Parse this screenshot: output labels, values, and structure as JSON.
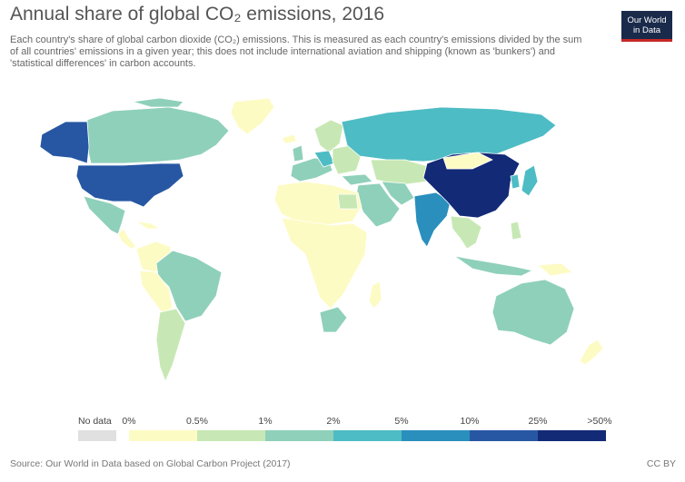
{
  "header": {
    "title": "Annual share of global CO₂ emissions, 2016",
    "subtitle": "Each country's share of global carbon dioxide (CO₂) emissions. This is measured as each country's emissions divided by the sum of all countries' emissions in a given year; this does not include international aviation and shipping (known as 'bunkers') and 'statistical differences' in carbon accounts.",
    "logo_line1": "Our World",
    "logo_line2": "in Data"
  },
  "legend": {
    "no_data_label": "No data",
    "no_data_color": "#e0e0e0",
    "bins": [
      {
        "label": "0%",
        "color": "#fdfbc4"
      },
      {
        "label": "0.5%",
        "color": "#c7e8b4"
      },
      {
        "label": "1%",
        "color": "#8fd0ba"
      },
      {
        "label": "2%",
        "color": "#4ebcc4"
      },
      {
        "label": "5%",
        "color": "#2a8fbd"
      },
      {
        "label": "10%",
        "color": "#2757a3"
      },
      {
        "label": "25%",
        "color": "#132a77"
      }
    ],
    "end_label": ">50%"
  },
  "map_colors": {
    "very_low": "#fdfbc4",
    "low": "#c7e8b4",
    "mid": "#8fd0ba",
    "mid_high": "#4ebcc4",
    "high": "#2a8fbd",
    "very_high": "#2757a3",
    "top": "#132a77",
    "no_data": "#e0e0e0"
  },
  "footer": {
    "source": "Source: Our World in Data based on Global Carbon Project (2017)",
    "license": "CC BY"
  }
}
